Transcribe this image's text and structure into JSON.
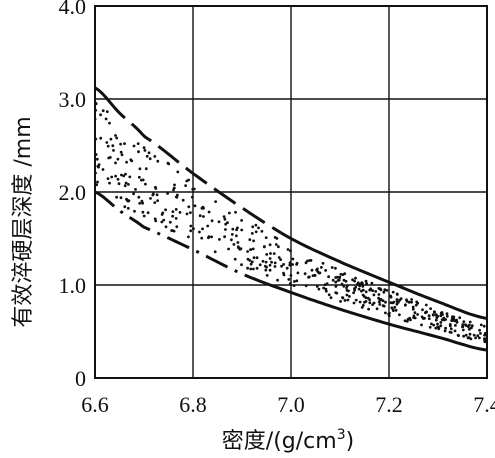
{
  "chart_data": {
    "type": "area",
    "title": "",
    "xlabel": "密度/(g/cm3)",
    "xlabel_main": "密度/(g/cm",
    "xlabel_sup": "3",
    "xlabel_close": ")",
    "ylabel": "有效淬硬层深度 /mm",
    "xlim": [
      6.6,
      7.4
    ],
    "ylim": [
      0,
      4.0
    ],
    "xticks": [
      "6.6",
      "6.8",
      "7.0",
      "7.2",
      "7.4"
    ],
    "yticks": [
      "0",
      "1.0",
      "2.0",
      "3.0",
      "4.0"
    ],
    "grid": true,
    "legend": "none",
    "series": [
      {
        "role": "upper-bound",
        "line_style": "solid-dashed",
        "x": [
          6.6,
          6.65,
          6.7,
          6.8,
          6.9,
          7.0,
          7.1,
          7.2,
          7.3,
          7.4
        ],
        "y": [
          3.12,
          2.85,
          2.6,
          2.2,
          1.83,
          1.5,
          1.25,
          1.03,
          0.82,
          0.64
        ]
      },
      {
        "role": "lower-bound",
        "line_style": "dash-dot-solid",
        "x": [
          6.6,
          6.65,
          6.7,
          6.8,
          6.9,
          7.0,
          7.1,
          7.2,
          7.3,
          7.4
        ],
        "y": [
          2.0,
          1.8,
          1.62,
          1.38,
          1.12,
          0.92,
          0.74,
          0.58,
          0.44,
          0.3
        ]
      }
    ]
  }
}
